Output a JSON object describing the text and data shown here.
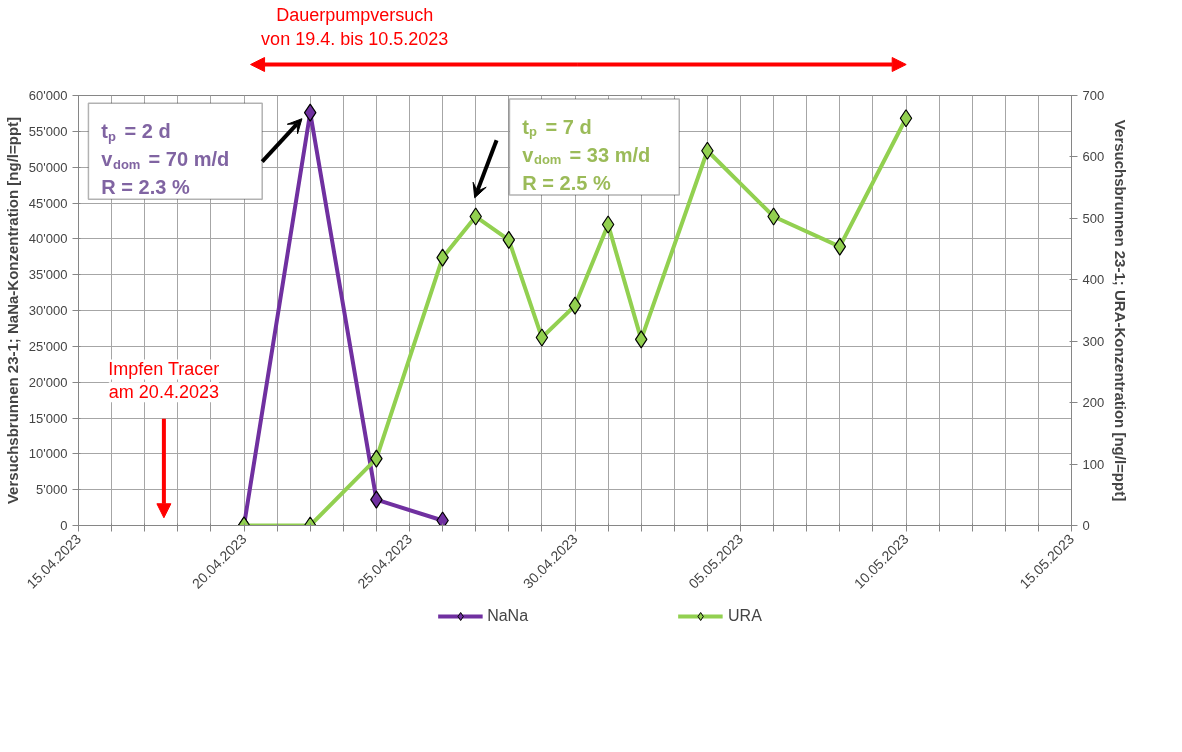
{
  "chart_data": {
    "type": "line",
    "ylabel": "Versuchsbrunnen 23-1; NaNa-Konzentration [ng/l=ppt]",
    "y2label": "Versuchsbrunnen 23-1; URA-Konzentration [ng/l=ppt]",
    "xlim": [
      "2023-04-15",
      "2023-05-15"
    ],
    "xticks": [
      {
        "value": "2023-04-15",
        "label": "15.04.2023"
      },
      {
        "value": "2023-04-16",
        "label": null
      },
      {
        "value": "2023-04-17",
        "label": null
      },
      {
        "value": "2023-04-18",
        "label": null
      },
      {
        "value": "2023-04-19",
        "label": null
      },
      {
        "value": "2023-04-20",
        "label": "20.04.2023"
      },
      {
        "value": "2023-04-21",
        "label": null
      },
      {
        "value": "2023-04-22",
        "label": null
      },
      {
        "value": "2023-04-23",
        "label": null
      },
      {
        "value": "2023-04-24",
        "label": null
      },
      {
        "value": "2023-04-25",
        "label": "25.04.2023"
      },
      {
        "value": "2023-04-26",
        "label": null
      },
      {
        "value": "2023-04-27",
        "label": null
      },
      {
        "value": "2023-04-28",
        "label": null
      },
      {
        "value": "2023-04-29",
        "label": null
      },
      {
        "value": "2023-04-30",
        "label": "30.04.2023"
      },
      {
        "value": "2023-05-01",
        "label": null
      },
      {
        "value": "2023-05-02",
        "label": null
      },
      {
        "value": "2023-05-03",
        "label": null
      },
      {
        "value": "2023-05-04",
        "label": null
      },
      {
        "value": "2023-05-05",
        "label": "05.05.2023"
      },
      {
        "value": "2023-05-06",
        "label": null
      },
      {
        "value": "2023-05-07",
        "label": null
      },
      {
        "value": "2023-05-08",
        "label": null
      },
      {
        "value": "2023-05-09",
        "label": null
      },
      {
        "value": "2023-05-10",
        "label": "10.05.2023"
      },
      {
        "value": "2023-05-11",
        "label": null
      },
      {
        "value": "2023-05-12",
        "label": null
      },
      {
        "value": "2023-05-13",
        "label": null
      },
      {
        "value": "2023-05-14",
        "label": null
      },
      {
        "value": "2023-05-15",
        "label": "15.05.2023"
      }
    ],
    "ylim": [
      0,
      60000
    ],
    "yticks": [
      0,
      {
        "value": 5000,
        "label": "5'000"
      },
      {
        "value": 10000,
        "label": "10'000"
      },
      {
        "value": 15000,
        "label": "15'000"
      },
      {
        "value": 20000,
        "label": "20'000"
      },
      {
        "value": 25000,
        "label": "25'000"
      },
      {
        "value": 30000,
        "label": "30'000"
      },
      {
        "value": 35000,
        "label": "35'000"
      },
      {
        "value": 40000,
        "label": "40'000"
      },
      {
        "value": 45000,
        "label": "45'000"
      },
      {
        "value": 50000,
        "label": "50'000"
      },
      {
        "value": 55000,
        "label": "55'000"
      },
      {
        "value": 60000,
        "label": "60'000"
      }
    ],
    "y2lim": [
      0,
      700
    ],
    "y2ticks": [
      0,
      100,
      200,
      300,
      400,
      500,
      600,
      700
    ],
    "series": [
      {
        "name": "NaNa",
        "color": "#7030a0",
        "x": [
          "2023-04-20",
          "2023-04-22",
          "2023-04-24",
          "2023-04-26"
        ],
        "values": [
          0,
          57600,
          3600,
          700
        ]
      },
      {
        "name": "URA",
        "color": "#92d050",
        "axis": "y2",
        "x": [
          "2023-04-20",
          "2023-04-22",
          "2023-04-24",
          "2023-04-26",
          "2023-04-27",
          "2023-04-28",
          "2023-04-29",
          "2023-04-30",
          "2023-05-01",
          "2023-05-02",
          "2023-05-04",
          "2023-05-06",
          "2023-05-08",
          "2023-05-10"
        ],
        "values": [
          0,
          0,
          109,
          436,
          503,
          465,
          306,
          358,
          490,
          303,
          610,
          503,
          454,
          663
        ]
      }
    ],
    "annotations": [
      "Dauerpumpversuch\nvon 19.4. bis 10.5.2023",
      "Impfen Tracer\nam 20.4.2023",
      "t$_{p}$ = 2 d\nv$_{dom}$ = 70 m/d\nR = 2.3 %",
      "t$_{p}$ = 7 d\nv$_{dom}$ = 33 m/d\nR = 2.5 %"
    ],
    "marker": "diamond",
    "line_style": "solid",
    "grid": true,
    "legend": "bottom"
  }
}
